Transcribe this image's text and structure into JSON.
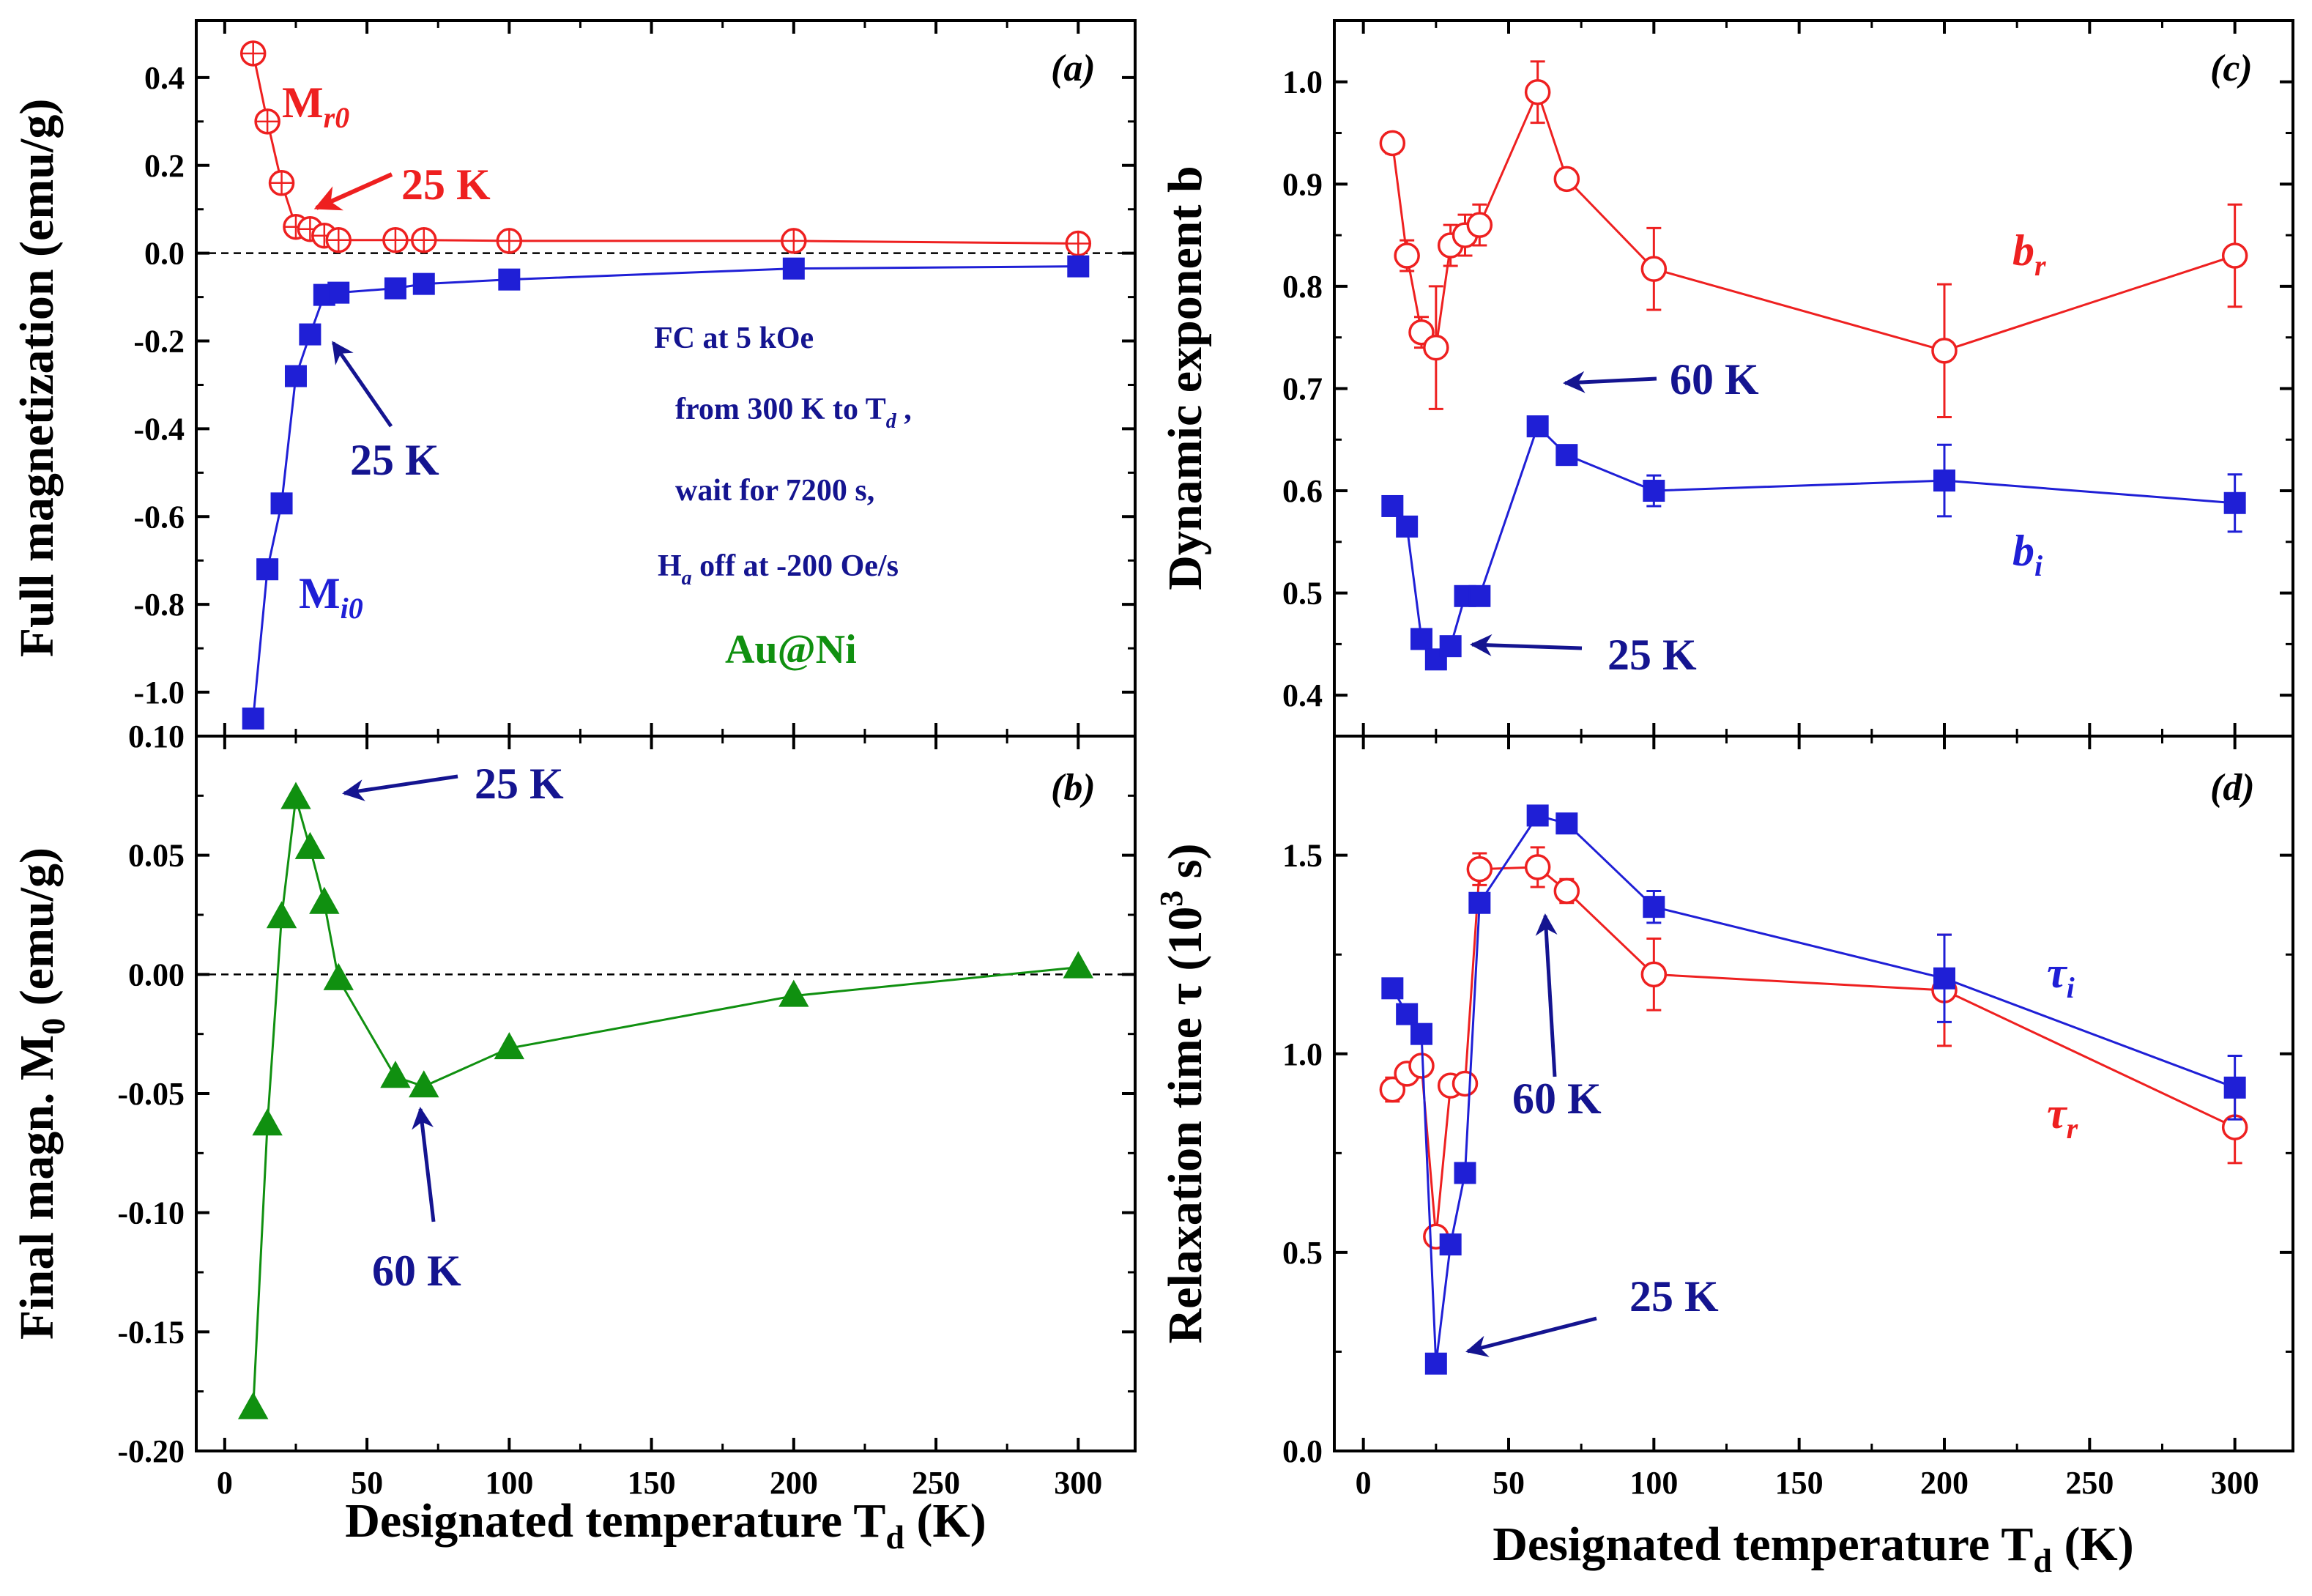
{
  "figure": {
    "colors": {
      "blue": "#1f1fd6",
      "red": "#ee2020",
      "green": "#109010",
      "navy": "#141490"
    },
    "x_axis_title": "Designated temperature T",
    "x_axis_title_sub": "d",
    "x_axis_title_tail": " (K)"
  },
  "chart_data": [
    {
      "id": "a",
      "panel_label": "(a)",
      "type": "line",
      "ylabel": "Full magnetization (emu/g)",
      "xlim": [
        -10,
        320
      ],
      "ylim": [
        -1.1,
        0.53
      ],
      "xticks": [
        {
          "v": 0,
          "label": "0"
        },
        {
          "v": 50,
          "label": "50"
        },
        {
          "v": 100,
          "label": "100"
        },
        {
          "v": 150,
          "label": "150"
        },
        {
          "v": 200,
          "label": "200"
        },
        {
          "v": 250,
          "label": "250"
        },
        {
          "v": 300,
          "label": "300"
        }
      ],
      "yticks": [
        {
          "v": 0.4,
          "label": "0.4"
        },
        {
          "v": 0.2,
          "label": "0.2"
        },
        {
          "v": 0.0,
          "label": "0.0"
        },
        {
          "v": -0.2,
          "label": "-0.2"
        },
        {
          "v": -0.4,
          "label": "-0.4"
        },
        {
          "v": -0.6,
          "label": "-0.6"
        },
        {
          "v": -0.8,
          "label": "-0.8"
        },
        {
          "v": -1.0,
          "label": "-1.0"
        }
      ],
      "zero_line": true,
      "series": [
        {
          "name": "Mr0",
          "color_key": "red",
          "marker": "circle",
          "x": [
            10,
            15,
            20,
            25,
            30,
            35,
            40,
            60,
            70,
            100,
            200,
            300
          ],
          "y": [
            0.455,
            0.3,
            0.16,
            0.06,
            0.055,
            0.04,
            0.03,
            0.03,
            0.03,
            0.028,
            0.028,
            0.022
          ]
        },
        {
          "name": "Mi0",
          "color_key": "blue",
          "marker": "square",
          "x": [
            10,
            15,
            20,
            25,
            30,
            35,
            40,
            60,
            70,
            100,
            200,
            300
          ],
          "y": [
            -1.06,
            -0.72,
            -0.57,
            -0.28,
            -0.185,
            -0.095,
            -0.09,
            -0.08,
            -0.07,
            -0.06,
            -0.035,
            -0.03
          ]
        }
      ],
      "annotations": [
        {
          "text": "M",
          "sub": "r0",
          "color_key": "red",
          "size": 60
        },
        {
          "text": "25 K",
          "sub": "",
          "color_key": "red",
          "size": 60
        },
        {
          "text": "25 K",
          "sub": "",
          "color_key": "navy",
          "size": 60
        },
        {
          "text": "M",
          "sub": "i0",
          "color_key": "blue",
          "size": 60
        },
        {
          "text": "FC at 5 kOe",
          "sub": "",
          "color_key": "navy",
          "size": 42
        },
        {
          "text": "from 300 K to T",
          "sub": "d",
          "tail": " ,",
          "color_key": "navy",
          "size": 42
        },
        {
          "text": "wait for 7200 s,",
          "sub": "",
          "color_key": "navy",
          "size": 42
        },
        {
          "text": "H",
          "sub": "a",
          "tail": " off at -200 Oe/s",
          "color_key": "navy",
          "size": 42
        },
        {
          "text": "Au@Ni",
          "sub": "",
          "color_key": "green",
          "size": 56
        }
      ]
    },
    {
      "id": "b",
      "panel_label": "(b)",
      "type": "line",
      "ylabel": "Final magn. M",
      "ylabel_sub": "0",
      "ylabel_tail": " (emu/g)",
      "xlim": [
        -10,
        320
      ],
      "ylim": [
        -0.2,
        0.1
      ],
      "xticks": [
        {
          "v": 0,
          "label": "0"
        },
        {
          "v": 50,
          "label": "50"
        },
        {
          "v": 100,
          "label": "100"
        },
        {
          "v": 150,
          "label": "150"
        },
        {
          "v": 200,
          "label": "200"
        },
        {
          "v": 250,
          "label": "250"
        },
        {
          "v": 300,
          "label": "300"
        }
      ],
      "xtick_labels_visible": true,
      "yticks": [
        {
          "v": 0.1,
          "label": "0.10"
        },
        {
          "v": 0.05,
          "label": "0.05"
        },
        {
          "v": 0.0,
          "label": "0.00"
        },
        {
          "v": -0.05,
          "label": "-0.05"
        },
        {
          "v": -0.1,
          "label": "-0.10"
        },
        {
          "v": -0.15,
          "label": "-0.15"
        },
        {
          "v": -0.2,
          "label": "-0.20"
        }
      ],
      "zero_line": true,
      "series": [
        {
          "name": "M0",
          "color_key": "green",
          "marker": "triangle",
          "x": [
            10,
            15,
            20,
            25,
            30,
            35,
            40,
            60,
            70,
            100,
            200,
            300
          ],
          "y": [
            -0.182,
            -0.063,
            0.024,
            0.074,
            0.053,
            0.03,
            -0.002,
            -0.043,
            -0.047,
            -0.031,
            -0.009,
            0.003
          ]
        }
      ],
      "annotations": [
        {
          "text": "25 K",
          "sub": "",
          "color_key": "navy",
          "size": 60
        },
        {
          "text": "60 K",
          "sub": "",
          "color_key": "navy",
          "size": 60
        }
      ]
    },
    {
      "id": "c",
      "panel_label": "(c)",
      "type": "line",
      "ylabel": "Dynamic exponent b",
      "xlim": [
        -10,
        320
      ],
      "ylim": [
        0.36,
        1.06
      ],
      "xticks": [
        {
          "v": 0,
          "label": "0"
        },
        {
          "v": 50,
          "label": "50"
        },
        {
          "v": 100,
          "label": "100"
        },
        {
          "v": 150,
          "label": "150"
        },
        {
          "v": 200,
          "label": "200"
        },
        {
          "v": 250,
          "label": "250"
        },
        {
          "v": 300,
          "label": "300"
        }
      ],
      "yticks": [
        {
          "v": 1.0,
          "label": "1.0"
        },
        {
          "v": 0.9,
          "label": "0.9"
        },
        {
          "v": 0.8,
          "label": "0.8"
        },
        {
          "v": 0.7,
          "label": "0.7"
        },
        {
          "v": 0.6,
          "label": "0.6"
        },
        {
          "v": 0.5,
          "label": "0.5"
        },
        {
          "v": 0.4,
          "label": "0.4"
        }
      ],
      "series": [
        {
          "name": "br",
          "color_key": "red",
          "marker": "circle",
          "x": [
            10,
            15,
            20,
            25,
            30,
            35,
            40,
            60,
            70,
            100,
            200,
            300
          ],
          "y": [
            0.94,
            0.83,
            0.755,
            0.74,
            0.84,
            0.85,
            0.86,
            0.99,
            0.905,
            0.817,
            0.737,
            0.83
          ],
          "err": [
            0.01,
            0.015,
            0.015,
            0.06,
            0.02,
            0.02,
            0.02,
            0.03,
            0.01,
            0.04,
            0.065,
            0.05
          ]
        },
        {
          "name": "bi",
          "color_key": "blue",
          "marker": "square",
          "x": [
            10,
            15,
            20,
            25,
            30,
            35,
            40,
            60,
            70,
            100,
            200,
            300
          ],
          "y": [
            0.585,
            0.565,
            0.455,
            0.435,
            0.448,
            0.497,
            0.497,
            0.663,
            0.635,
            0.6,
            0.61,
            0.588
          ],
          "err": [
            0.005,
            0.005,
            0.005,
            0.005,
            0.005,
            0.005,
            0.005,
            0.005,
            0.005,
            0.015,
            0.035,
            0.028
          ]
        }
      ],
      "annotations": [
        {
          "text": "b",
          "sub": "r",
          "color_key": "red",
          "size": 60
        },
        {
          "text": "b",
          "sub": "i",
          "color_key": "blue",
          "size": 60
        },
        {
          "text": "60 K",
          "sub": "",
          "color_key": "navy",
          "size": 60
        },
        {
          "text": "25 K",
          "sub": "",
          "color_key": "navy",
          "size": 60
        }
      ]
    },
    {
      "id": "d",
      "panel_label": "(d)",
      "type": "line",
      "ylabel": "Relaxation time τ (10",
      "ylabel_sup": "3",
      "ylabel_tail": " s)",
      "xlim": [
        -10,
        320
      ],
      "ylim": [
        0.0,
        1.8
      ],
      "xticks": [
        {
          "v": 0,
          "label": "0"
        },
        {
          "v": 50,
          "label": "50"
        },
        {
          "v": 100,
          "label": "100"
        },
        {
          "v": 150,
          "label": "150"
        },
        {
          "v": 200,
          "label": "200"
        },
        {
          "v": 250,
          "label": "250"
        },
        {
          "v": 300,
          "label": "300"
        }
      ],
      "yticks": [
        {
          "v": 1.5,
          "label": "1.5"
        },
        {
          "v": 1.0,
          "label": "1.0"
        },
        {
          "v": 0.5,
          "label": "0.5"
        },
        {
          "v": 0.0,
          "label": "0.0"
        }
      ],
      "series": [
        {
          "name": "τr",
          "color_key": "red",
          "marker": "circle",
          "x": [
            10,
            15,
            20,
            25,
            30,
            35,
            40,
            60,
            70,
            100,
            200,
            300
          ],
          "y": [
            0.91,
            0.95,
            0.97,
            0.54,
            0.92,
            0.925,
            1.465,
            1.47,
            1.41,
            1.2,
            1.16,
            0.815
          ],
          "err": [
            0.03,
            0.02,
            0.02,
            0.02,
            0.02,
            0.02,
            0.04,
            0.05,
            0.03,
            0.09,
            0.14,
            0.09
          ]
        },
        {
          "name": "τi",
          "color_key": "blue",
          "marker": "square",
          "x": [
            10,
            15,
            20,
            25,
            30,
            35,
            40,
            60,
            70,
            100,
            200,
            300
          ],
          "y": [
            1.165,
            1.1,
            1.05,
            0.22,
            0.52,
            0.7,
            1.38,
            1.6,
            1.58,
            1.37,
            1.19,
            0.915
          ],
          "err": [
            0.01,
            0.01,
            0.01,
            0.01,
            0.01,
            0.01,
            0.02,
            0.01,
            0.01,
            0.04,
            0.11,
            0.08
          ]
        }
      ],
      "annotations": [
        {
          "text": "τ",
          "sub": "i",
          "color_key": "blue",
          "size": 60
        },
        {
          "text": "τ",
          "sub": "r",
          "color_key": "red",
          "size": 60
        },
        {
          "text": "60 K",
          "sub": "",
          "color_key": "navy",
          "size": 60
        },
        {
          "text": "25 K",
          "sub": "",
          "color_key": "navy",
          "size": 60
        }
      ]
    }
  ]
}
